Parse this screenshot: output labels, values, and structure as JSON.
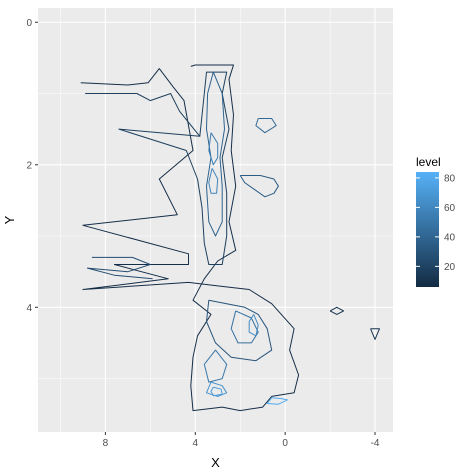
{
  "chart_data": {
    "type": "contour",
    "xlabel": "X",
    "ylabel": "Y",
    "x_reversed": true,
    "y_reversed": true,
    "xlim": [
      11,
      -4.8
    ],
    "ylim": [
      -0.2,
      5.75
    ],
    "x_ticks": [
      8,
      4,
      0,
      -4
    ],
    "x_tick_labels": [
      "8",
      "4",
      "0",
      "-4"
    ],
    "y_ticks": [
      0,
      2,
      4
    ],
    "y_tick_labels": [
      "0",
      "2",
      "4"
    ],
    "grid": true,
    "panel_background": "#ebebeb",
    "grid_color": "#ffffff",
    "legend": {
      "title": "level",
      "position": "right",
      "range": [
        6,
        84
      ],
      "breaks": [
        20,
        40,
        60,
        80
      ],
      "break_labels": [
        "20",
        "40",
        "60",
        "80"
      ],
      "color_low": "#132b43",
      "color_high": "#56b1f7"
    },
    "contours": [
      {
        "level": 8,
        "points": [
          [
            9.1,
            0.85
          ],
          [
            7.0,
            0.88
          ],
          [
            6.1,
            0.85
          ],
          [
            5.6,
            0.65
          ],
          [
            5.0,
            0.9
          ],
          [
            4.5,
            1.1
          ],
          [
            4.1,
            1.8
          ],
          [
            5.6,
            2.2
          ],
          [
            4.8,
            2.7
          ],
          [
            9.0,
            2.85
          ],
          [
            4.3,
            3.25
          ],
          [
            4.3,
            3.4
          ],
          [
            7.6,
            3.4
          ],
          [
            5.2,
            3.6
          ],
          [
            9.0,
            3.75
          ],
          [
            4.3,
            3.65
          ],
          [
            3.0,
            3.7
          ],
          [
            1.6,
            3.75
          ],
          [
            0.6,
            3.95
          ],
          [
            -0.4,
            4.3
          ],
          [
            -0.2,
            4.6
          ],
          [
            -0.6,
            4.95
          ],
          [
            -0.4,
            5.2
          ],
          [
            0.6,
            5.25
          ],
          [
            1.0,
            5.4
          ],
          [
            2.0,
            5.45
          ],
          [
            2.8,
            5.4
          ],
          [
            4.1,
            5.45
          ],
          [
            4.2,
            5.1
          ],
          [
            4.1,
            4.7
          ],
          [
            3.9,
            4.4
          ],
          [
            3.3,
            4.1
          ],
          [
            4.1,
            3.9
          ],
          [
            3.6,
            3.6
          ],
          [
            3.0,
            3.35
          ],
          [
            2.2,
            3.2
          ],
          [
            2.5,
            2.8
          ],
          [
            2.2,
            2.3
          ],
          [
            2.4,
            1.8
          ],
          [
            2.3,
            1.3
          ],
          [
            2.5,
            0.8
          ],
          [
            2.3,
            0.6
          ],
          [
            3.4,
            0.6
          ],
          [
            4.0,
            0.6
          ],
          [
            4.2,
            0.62
          ]
        ]
      },
      {
        "level": 18,
        "points": [
          [
            8.9,
            1.0
          ],
          [
            7.2,
            1.0
          ],
          [
            6.6,
            1.0
          ],
          [
            6.0,
            1.1
          ],
          [
            5.1,
            1.0
          ],
          [
            4.7,
            1.25
          ],
          [
            3.8,
            1.6
          ],
          [
            7.4,
            1.5
          ],
          [
            4.4,
            1.8
          ],
          [
            3.9,
            2.2
          ],
          [
            3.7,
            2.6
          ],
          [
            3.6,
            3.1
          ],
          [
            3.4,
            3.4
          ],
          [
            2.8,
            3.4
          ],
          [
            2.6,
            3.0
          ],
          [
            2.6,
            2.4
          ],
          [
            2.8,
            1.9
          ],
          [
            2.5,
            1.5
          ],
          [
            2.8,
            1.0
          ],
          [
            2.6,
            0.7
          ],
          [
            3.5,
            0.7
          ],
          [
            3.6,
            1.0
          ],
          [
            3.8,
            1.6
          ]
        ]
      },
      {
        "level": 26,
        "points": [
          [
            8.6,
            3.3
          ],
          [
            6.8,
            3.3
          ],
          [
            6.0,
            3.4
          ],
          [
            7.0,
            3.5
          ],
          [
            8.8,
            3.45
          ],
          [
            7.6,
            3.55
          ],
          [
            5.9,
            3.6
          ]
        ]
      },
      {
        "level": 30,
        "points": [
          [
            3.4,
            3.9
          ],
          [
            2.6,
            3.95
          ],
          [
            1.8,
            4.0
          ],
          [
            1.2,
            4.1
          ],
          [
            0.8,
            4.3
          ],
          [
            0.6,
            4.6
          ],
          [
            1.3,
            4.75
          ],
          [
            2.4,
            4.7
          ],
          [
            3.1,
            4.5
          ],
          [
            3.5,
            4.2
          ],
          [
            3.4,
            3.9
          ]
        ]
      },
      {
        "level": 34,
        "points": [
          [
            2.0,
            2.15
          ],
          [
            1.8,
            2.25
          ],
          [
            0.9,
            2.45
          ],
          [
            0.5,
            2.4
          ],
          [
            0.3,
            2.3
          ],
          [
            0.5,
            2.2
          ],
          [
            1.1,
            2.15
          ],
          [
            2.0,
            2.15
          ]
        ]
      },
      {
        "level": 38,
        "points": [
          [
            3.2,
            0.7
          ],
          [
            3.45,
            1.0
          ],
          [
            3.5,
            1.5
          ],
          [
            3.3,
            1.9
          ],
          [
            3.5,
            2.3
          ],
          [
            3.4,
            2.8
          ],
          [
            3.1,
            3.0
          ],
          [
            2.8,
            2.8
          ],
          [
            2.8,
            2.3
          ],
          [
            2.9,
            1.9
          ],
          [
            2.7,
            1.5
          ],
          [
            2.8,
            1.0
          ],
          [
            3.2,
            0.7
          ]
        ]
      },
      {
        "level": 42,
        "points": [
          [
            1.2,
            1.35
          ],
          [
            0.6,
            1.35
          ],
          [
            0.4,
            1.45
          ],
          [
            0.9,
            1.55
          ],
          [
            1.3,
            1.45
          ],
          [
            1.2,
            1.35
          ]
        ]
      },
      {
        "level": 46,
        "points": [
          [
            2.2,
            4.05
          ],
          [
            1.5,
            4.15
          ],
          [
            1.2,
            4.35
          ],
          [
            1.5,
            4.5
          ],
          [
            2.1,
            4.5
          ],
          [
            2.4,
            4.3
          ],
          [
            2.2,
            4.05
          ]
        ]
      },
      {
        "level": 50,
        "points": [
          [
            3.6,
            4.8
          ],
          [
            3.1,
            4.6
          ],
          [
            2.6,
            4.8
          ],
          [
            2.8,
            5.0
          ],
          [
            3.4,
            5.05
          ],
          [
            3.6,
            4.8
          ]
        ]
      },
      {
        "level": 54,
        "points": [
          [
            3.3,
            1.55
          ],
          [
            3.0,
            1.7
          ],
          [
            3.0,
            1.9
          ],
          [
            3.2,
            2.0
          ],
          [
            3.4,
            1.8
          ],
          [
            3.3,
            1.55
          ]
        ]
      },
      {
        "level": 58,
        "points": [
          [
            3.25,
            2.05
          ],
          [
            3.0,
            2.2
          ],
          [
            3.05,
            2.4
          ],
          [
            3.3,
            2.4
          ],
          [
            3.4,
            2.25
          ],
          [
            3.25,
            2.05
          ]
        ]
      },
      {
        "level": 62,
        "points": [
          [
            1.4,
            4.1
          ],
          [
            1.2,
            4.25
          ],
          [
            1.3,
            4.4
          ],
          [
            1.6,
            4.35
          ],
          [
            1.6,
            4.2
          ],
          [
            1.4,
            4.1
          ]
        ]
      },
      {
        "level": 66,
        "points": [
          [
            3.3,
            5.05
          ],
          [
            2.8,
            5.1
          ],
          [
            2.6,
            5.2
          ],
          [
            3.0,
            5.25
          ],
          [
            3.5,
            5.2
          ],
          [
            3.3,
            5.05
          ]
        ]
      },
      {
        "level": 72,
        "points": [
          [
            3.2,
            5.12
          ],
          [
            2.85,
            5.15
          ],
          [
            2.8,
            5.22
          ],
          [
            3.2,
            5.24
          ],
          [
            3.3,
            5.18
          ],
          [
            3.2,
            5.12
          ]
        ]
      },
      {
        "level": 80,
        "points": [
          [
            0.6,
            5.27
          ],
          [
            0.2,
            5.28
          ],
          [
            -0.1,
            5.3
          ],
          [
            0.3,
            5.36
          ],
          [
            0.8,
            5.35
          ],
          [
            0.6,
            5.27
          ]
        ]
      },
      {
        "level": 10,
        "points": [
          [
            -2.0,
            4.05
          ],
          [
            -2.3,
            4.0
          ],
          [
            -2.6,
            4.05
          ],
          [
            -2.3,
            4.1
          ],
          [
            -2.0,
            4.05
          ]
        ]
      },
      {
        "level": 12,
        "points": [
          [
            -3.8,
            4.3
          ],
          [
            -4.2,
            4.3
          ],
          [
            -4.0,
            4.45
          ],
          [
            -3.8,
            4.3
          ]
        ]
      }
    ]
  }
}
